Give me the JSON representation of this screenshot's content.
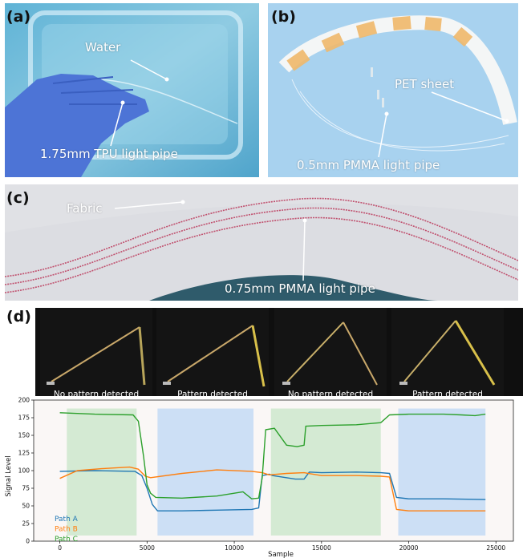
{
  "panels": {
    "a": {
      "letter": "(a)",
      "labels": {
        "water": "Water",
        "pipe": "1.75mm TPU light pipe"
      }
    },
    "b": {
      "letter": "(b)",
      "labels": {
        "sheet": "PET sheet",
        "pipe": "0.5mm PMMA light pipe"
      }
    },
    "c": {
      "letter": "(c)",
      "labels": {
        "fabric": "Fabric",
        "pipe": "0.75mm PMMA light pipe"
      }
    },
    "d": {
      "letter": "(d)"
    }
  },
  "thumbnails": [
    {
      "caption": "No pattern detected"
    },
    {
      "caption": "Pattern detected"
    },
    {
      "caption": "No pattern detected"
    },
    {
      "caption": "Pattern detected"
    }
  ],
  "colors": {
    "path_a": "#1f77b4",
    "path_b": "#ff7f0e",
    "path_c": "#2ca02c",
    "shade_green": "#cfe8cf",
    "shade_blue": "#c6dcf5",
    "water_bg": "#7fc3dd",
    "sheet_bg": "#a9d3f0",
    "fabric_bg": "#dcdde2",
    "stitch": "#c0506e"
  },
  "chart_data": {
    "type": "line",
    "xlabel": "Sample",
    "ylabel": "Signal Level",
    "xlim": [
      -1500,
      26000
    ],
    "ylim": [
      0,
      200
    ],
    "xticks": [
      0,
      5000,
      10000,
      15000,
      20000,
      25000
    ],
    "yticks": [
      0,
      25,
      50,
      75,
      100,
      125,
      150,
      175,
      200
    ],
    "shaded_regions": [
      {
        "x0": 400,
        "x1": 4400,
        "color": "green"
      },
      {
        "x0": 5600,
        "x1": 11100,
        "color": "blue"
      },
      {
        "x0": 12100,
        "x1": 18400,
        "color": "green"
      },
      {
        "x0": 19400,
        "x1": 24400,
        "color": "blue"
      }
    ],
    "legend_position": "bottom-left",
    "series": [
      {
        "name": "Path A",
        "color": "#1f77b4",
        "x": [
          0,
          2000,
          4300,
          4700,
          5000,
          5300,
          5600,
          7000,
          9000,
          11000,
          11400,
          11600,
          12000,
          12200,
          13500,
          14000,
          14300,
          15000,
          17000,
          18400,
          18900,
          19300,
          20000,
          22000,
          24400
        ],
        "y": [
          99,
          100,
          99,
          93,
          75,
          52,
          43,
          43,
          44,
          45,
          47,
          93,
          95,
          93,
          88,
          88,
          98,
          97,
          98,
          97,
          96,
          62,
          60,
          60,
          59
        ]
      },
      {
        "name": "Path B",
        "color": "#ff7f0e",
        "x": [
          0,
          1000,
          2500,
          4000,
          4500,
          4900,
          5200,
          7000,
          9000,
          11000,
          11600,
          12000,
          13000,
          14000,
          15000,
          17000,
          18400,
          18900,
          19300,
          20000,
          22000,
          24400
        ],
        "y": [
          89,
          100,
          103,
          105,
          102,
          92,
          90,
          96,
          101,
          99,
          97,
          94,
          96,
          97,
          93,
          93,
          92,
          91,
          45,
          43,
          43,
          43
        ]
      },
      {
        "name": "Path C",
        "color": "#2ca02c",
        "x": [
          0,
          2000,
          4200,
          4500,
          4800,
          5000,
          5200,
          5500,
          7000,
          9000,
          10500,
          11000,
          11400,
          11600,
          11800,
          12300,
          13000,
          13600,
          14000,
          14100,
          15000,
          17000,
          18400,
          18900,
          20000,
          22000,
          23000,
          23800,
          24400
        ],
        "y": [
          182,
          180,
          179,
          170,
          120,
          80,
          68,
          62,
          61,
          64,
          70,
          60,
          61,
          90,
          158,
          160,
          136,
          134,
          136,
          163,
          164,
          165,
          168,
          179,
          180,
          180,
          179,
          178,
          180
        ]
      }
    ]
  }
}
